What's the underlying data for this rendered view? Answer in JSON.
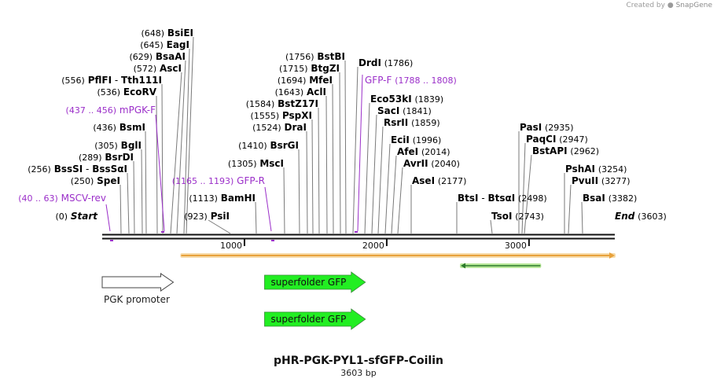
{
  "credit": {
    "text": "Created by",
    "brand": "SnapGene"
  },
  "plasmid": {
    "name": "pHR-PGK-PYL1-sfGFP-Coilin",
    "length_label": "3603 bp",
    "length": 3603
  },
  "colors": {
    "enzyme": "#000000",
    "primer": "#9b2fc9",
    "gfp": "#22ee22",
    "orf_line": "#e8a23c",
    "orf_halo": "#f7dcab",
    "green_halo": "#b9e89b"
  },
  "ruler": {
    "ticks": [
      "1000",
      "2000",
      "3000"
    ]
  },
  "sites": [
    {
      "pos": "(648)",
      "name": "BsiEI",
      "bp": 648
    },
    {
      "pos": "(645)",
      "name": "EagI",
      "bp": 645
    },
    {
      "pos": "(629)",
      "name": "BsaAI",
      "bp": 629
    },
    {
      "pos": "(572)",
      "name": "AscI",
      "bp": 572
    },
    {
      "pos": "(556)",
      "name": "PflFI - Tth111I",
      "bp": 556
    },
    {
      "pos": "(536)",
      "name": "EcoRV",
      "bp": 536
    },
    {
      "pos": "(436)",
      "name": "BsmI",
      "bp": 436
    },
    {
      "pos": "(305)",
      "name": "BglI",
      "bp": 305
    },
    {
      "pos": "(289)",
      "name": "BsrDI",
      "bp": 289
    },
    {
      "pos": "(256)",
      "name": "BssSI - BssSαI",
      "bp": 256
    },
    {
      "pos": "(250)",
      "name": "SpeI",
      "bp": 250
    },
    {
      "pos": "(0)",
      "name": "Start",
      "bp": 0
    },
    {
      "pos": "(923)",
      "name": "PsiI",
      "bp": 923
    },
    {
      "pos": "(1113)",
      "name": "BamHI",
      "bp": 1113
    },
    {
      "pos": "(1305)",
      "name": "MscI",
      "bp": 1305
    },
    {
      "pos": "(1410)",
      "name": "BsrGI",
      "bp": 1410
    },
    {
      "pos": "(1524)",
      "name": "DraI",
      "bp": 1524
    },
    {
      "pos": "(1555)",
      "name": "PspXI",
      "bp": 1555
    },
    {
      "pos": "(1584)",
      "name": "BstZ17I",
      "bp": 1584
    },
    {
      "pos": "(1643)",
      "name": "AclI",
      "bp": 1643
    },
    {
      "pos": "(1694)",
      "name": "MfeI",
      "bp": 1694
    },
    {
      "pos": "(1715)",
      "name": "BtgZI",
      "bp": 1715
    },
    {
      "pos": "(1756)",
      "name": "BstBI",
      "bp": 1756
    },
    {
      "pos": "(1786)",
      "name": "DrdI",
      "bp": 1786
    },
    {
      "pos": "(1839)",
      "name": "Eco53kI",
      "bp": 1839
    },
    {
      "pos": "(1841)",
      "name": "SacI",
      "bp": 1841
    },
    {
      "pos": "(1859)",
      "name": "RsrII",
      "bp": 1859
    },
    {
      "pos": "(1996)",
      "name": "EciI",
      "bp": 1996
    },
    {
      "pos": "(2014)",
      "name": "AfeI",
      "bp": 2014
    },
    {
      "pos": "(2040)",
      "name": "AvrII",
      "bp": 2040
    },
    {
      "pos": "(2177)",
      "name": "AseI",
      "bp": 2177
    },
    {
      "pos": "(2498)",
      "name": "BtsI - BtsαI",
      "bp": 2498
    },
    {
      "pos": "(2743)",
      "name": "TsoI",
      "bp": 2743
    },
    {
      "pos": "(2935)",
      "name": "PasI",
      "bp": 2935
    },
    {
      "pos": "(2947)",
      "name": "PaqCI",
      "bp": 2947
    },
    {
      "pos": "(2962)",
      "name": "BstAPI",
      "bp": 2962
    },
    {
      "pos": "(3254)",
      "name": "PshAI",
      "bp": 3254
    },
    {
      "pos": "(3277)",
      "name": "PvuII",
      "bp": 3277
    },
    {
      "pos": "(3382)",
      "name": "BsaI",
      "bp": 3382
    },
    {
      "pos": "(3603)",
      "name": "End",
      "bp": 3603
    }
  ],
  "primers": [
    {
      "range": "(437 .. 456)",
      "name": "mPGK-F",
      "start": 437,
      "end": 456,
      "strand": "+"
    },
    {
      "range": "(40 .. 63)",
      "name": "MSCV-rev",
      "start": 40,
      "end": 63,
      "strand": "-"
    },
    {
      "range": "(1165 .. 1193)",
      "name": "GFP-R",
      "start": 1165,
      "end": 1193,
      "strand": "-"
    },
    {
      "range": "(1788 .. 1808)",
      "name": "GFP-F",
      "start": 1788,
      "end": 1808,
      "strand": "+"
    }
  ],
  "features": {
    "orf": {
      "start": 555,
      "end": 3603
    },
    "green_orf": {
      "start": 2520,
      "end": 3080
    },
    "promoter": {
      "label": "PGK promoter",
      "start": 0,
      "end": 500
    },
    "gfp": [
      {
        "label": "superfolder GFP",
        "start": 1141,
        "end": 1850
      },
      {
        "label": "superfolder GFP",
        "start": 1141,
        "end": 1850
      }
    ]
  }
}
